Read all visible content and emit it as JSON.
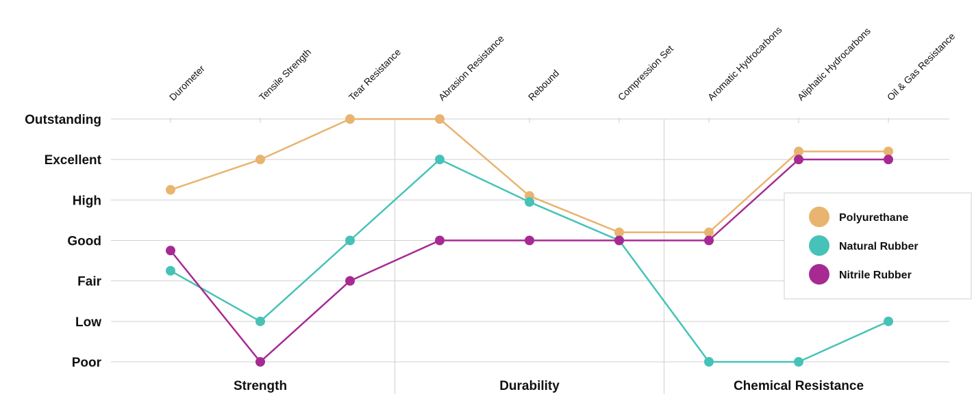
{
  "chart_data": {
    "type": "line",
    "categories": [
      "Durometer",
      "Tensile Strength",
      "Tear Resistance",
      "Abrasion Resistance",
      "Rebound",
      "Compression Set",
      "Aromatic Hydrocarbons",
      "Aliphatic Hydrocarbons",
      "Oil & Gas Resistance"
    ],
    "y_levels": [
      "Poor",
      "Low",
      "Fair",
      "Good",
      "High",
      "Excellent",
      "Outstanding"
    ],
    "ylim": [
      0,
      6
    ],
    "groups": [
      {
        "label": "Strength",
        "categories": [
          0,
          1,
          2
        ]
      },
      {
        "label": "Durability",
        "categories": [
          3,
          4,
          5
        ]
      },
      {
        "label": "Chemical Resistance",
        "categories": [
          6,
          7,
          8
        ]
      }
    ],
    "series": [
      {
        "name": "Polyurethane",
        "color": "#e8b46f",
        "values": [
          4.25,
          5.0,
          6.0,
          6.0,
          4.1,
          3.2,
          3.2,
          5.2,
          5.2
        ]
      },
      {
        "name": "Natural Rubber",
        "color": "#46c2b8",
        "values": [
          2.25,
          1.0,
          3.0,
          5.0,
          3.95,
          3.0,
          0.0,
          0.0,
          1.0
        ]
      },
      {
        "name": "Nitrile Rubber",
        "color": "#a62a92",
        "values": [
          2.75,
          0.0,
          2.0,
          3.0,
          3.0,
          3.0,
          3.0,
          5.0,
          5.0
        ]
      }
    ],
    "grid": true,
    "legend_position": "right"
  }
}
